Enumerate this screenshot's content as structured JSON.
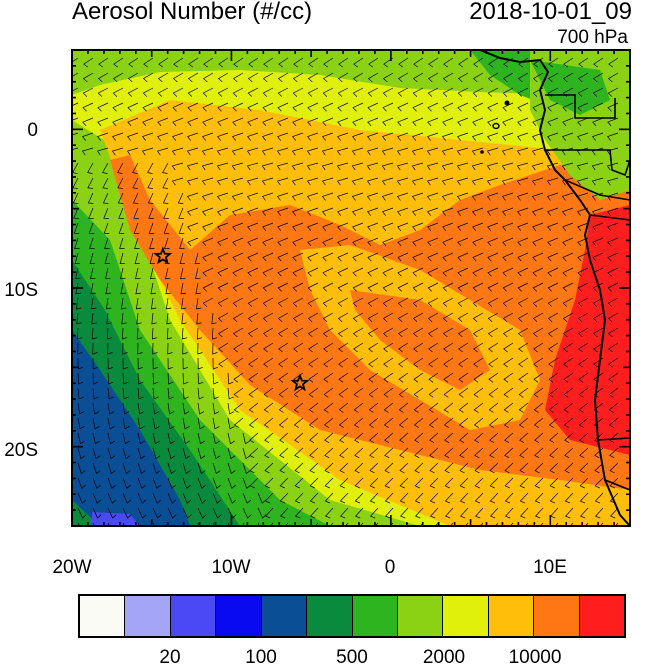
{
  "title_left": "Aerosol Number (#/cc)",
  "title_right": "2018-10-01_09",
  "level": "700 hPa",
  "lat_labels": [
    "0",
    "10S",
    "20S"
  ],
  "lon_labels": [
    "20W",
    "10W",
    "0",
    "10E"
  ],
  "colorbar": {
    "colors": [
      "#fbfbf5",
      "#a5a5f5",
      "#4a4af5",
      "#0a0af0",
      "#0a4e96",
      "#0a8a3c",
      "#2db41e",
      "#8cd214",
      "#e1f00a",
      "#ffbe0a",
      "#ff7814",
      "#ff1e1e"
    ],
    "labels": [
      "20",
      "100",
      "500",
      "2000",
      "10000"
    ]
  },
  "markers": [
    {
      "name": "star-marker-west",
      "lon": -14.3,
      "lat": -8.0
    },
    {
      "name": "star-marker-central",
      "lon": -5.7,
      "lat": -16.0
    }
  ]
}
